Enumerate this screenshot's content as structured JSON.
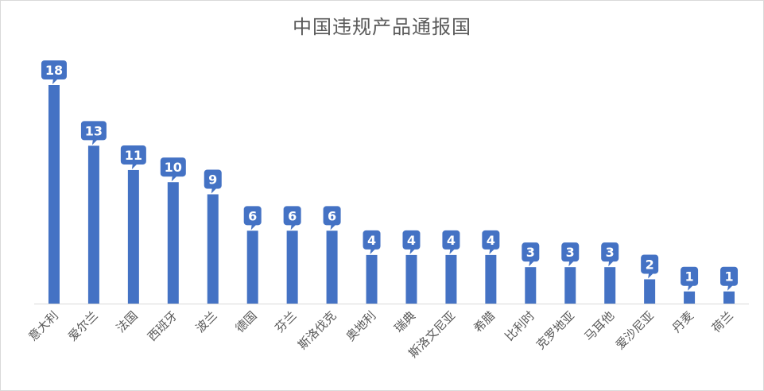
{
  "chart_data": {
    "type": "bar",
    "title": "中国违规产品通报国",
    "categories": [
      "意大利",
      "爱尔兰",
      "法国",
      "西班牙",
      "波兰",
      "德国",
      "芬兰",
      "斯洛伐克",
      "奥地利",
      "瑞典",
      "斯洛文尼亚",
      "希腊",
      "比利时",
      "克罗地亚",
      "马耳他",
      "爱沙尼亚",
      "丹麦",
      "荷兰"
    ],
    "values": [
      18,
      13,
      11,
      10,
      9,
      6,
      6,
      6,
      4,
      4,
      4,
      4,
      3,
      3,
      3,
      2,
      1,
      1
    ],
    "ylim": [
      0,
      18
    ],
    "xlabel": "",
    "ylabel": "",
    "grid": false,
    "legend": "none",
    "bar_color": "#4472c4",
    "label_color": "#ffffff",
    "axis_text_color": "#595959"
  }
}
